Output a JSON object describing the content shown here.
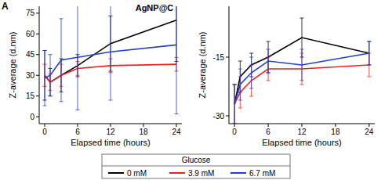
{
  "chart_data": [
    {
      "type": "line",
      "panel_label": "A",
      "title": "AgNP@C",
      "xlabel": "Elapsed time (hours)",
      "ylabel": "Z-average (d.nm)",
      "x": [
        0,
        1,
        3,
        6,
        12,
        24
      ],
      "xlim": [
        -1,
        25
      ],
      "xticks": [
        0,
        6,
        12,
        18,
        24
      ],
      "ylim": [
        -5,
        80
      ],
      "yticks": [
        0,
        15,
        30,
        45,
        60,
        75
      ],
      "legend": "bottom",
      "legend_title": "Glucose",
      "series": [
        {
          "name": "0 mM",
          "color": "#000000",
          "values": [
            30,
            25,
            30,
            37,
            53,
            70
          ],
          "errors": [
            18,
            10,
            12,
            8,
            20,
            30
          ]
        },
        {
          "name": "3.9 mM",
          "color": "#e8221f",
          "values": [
            30,
            25,
            30,
            35,
            37,
            38
          ],
          "errors": [
            8,
            6,
            8,
            5,
            5,
            5
          ]
        },
        {
          "name": "6.7 mM",
          "color": "#1f3fd1",
          "values": [
            28,
            30,
            41,
            43,
            47,
            52
          ],
          "errors": [
            20,
            15,
            30,
            38,
            35,
            50
          ]
        }
      ]
    },
    {
      "type": "line",
      "xlabel": "Elapsed time (hours)",
      "ylabel": "Z-average (d.nm)",
      "x": [
        0,
        1,
        3,
        6,
        12,
        24
      ],
      "xlim": [
        -1,
        25
      ],
      "xticks": [
        0,
        6,
        12,
        18,
        24
      ],
      "ylim": [
        -32,
        -2
      ],
      "yticks": [
        -30,
        -15
      ],
      "series": [
        {
          "color": "#000000",
          "values": [
            -27,
            -20,
            -17,
            -15,
            -10,
            -14
          ],
          "errors": [
            5,
            4,
            3,
            4,
            5,
            3
          ]
        },
        {
          "color": "#e8221f",
          "values": [
            -27,
            -24,
            -21,
            -18,
            -18,
            -17
          ],
          "errors": [
            5,
            4,
            4,
            3,
            4,
            3
          ]
        },
        {
          "color": "#1f3fd1",
          "values": [
            -27,
            -22,
            -19,
            -16,
            -17,
            -14
          ],
          "errors": [
            5,
            4,
            4,
            3,
            4,
            3
          ]
        }
      ]
    }
  ]
}
